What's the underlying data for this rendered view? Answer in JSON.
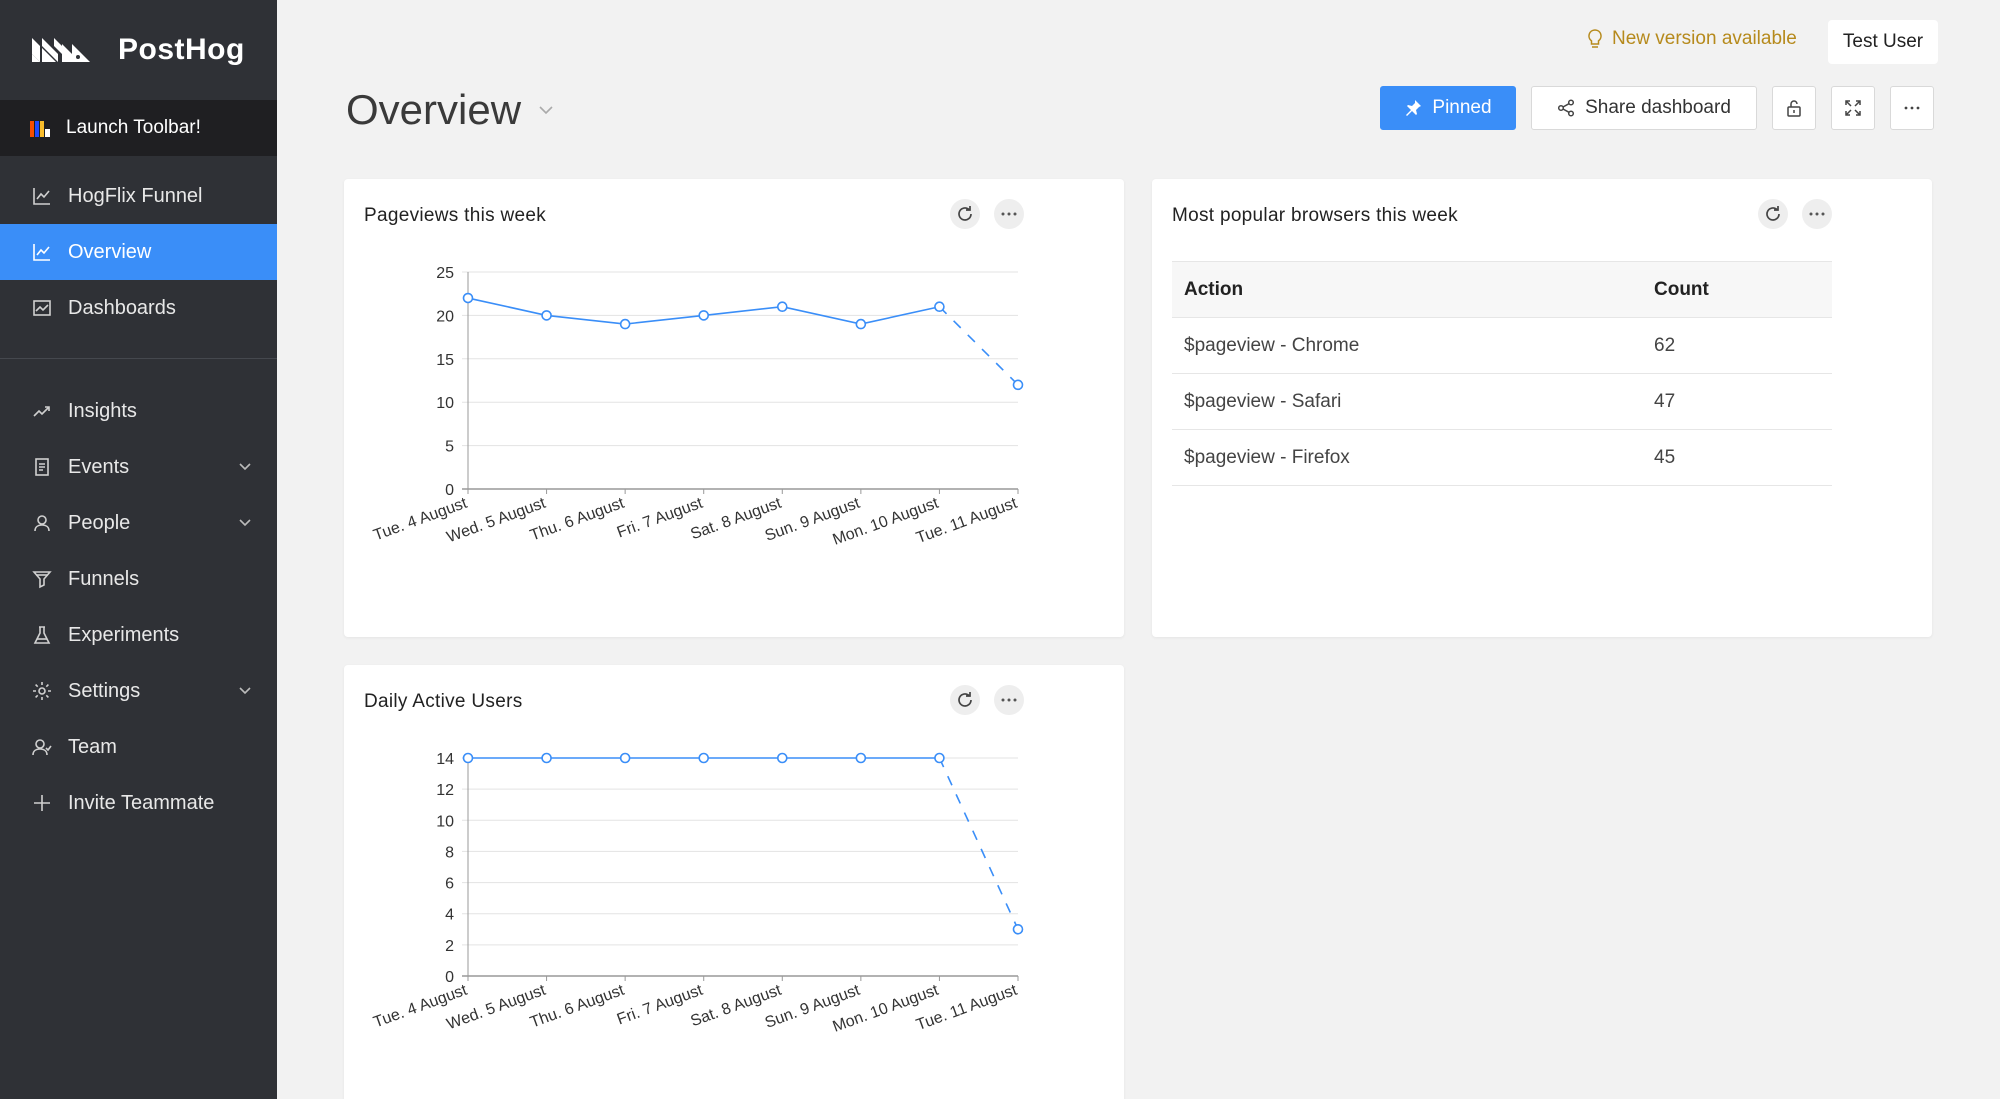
{
  "app": {
    "name": "PostHog"
  },
  "sidebar": {
    "launch_toolbar": "Launch Toolbar!",
    "items": [
      {
        "label": "HogFlix Funnel",
        "icon": "line-chart-icon"
      },
      {
        "label": "Overview",
        "icon": "line-chart-icon",
        "active": true
      },
      {
        "label": "Dashboards",
        "icon": "dashboard-icon"
      },
      {
        "label": "Insights",
        "icon": "rise-icon"
      },
      {
        "label": "Events",
        "icon": "file-icon",
        "expandable": true
      },
      {
        "label": "People",
        "icon": "user-icon",
        "expandable": true
      },
      {
        "label": "Funnels",
        "icon": "funnel-icon"
      },
      {
        "label": "Experiments",
        "icon": "flask-icon"
      },
      {
        "label": "Settings",
        "icon": "gear-icon",
        "expandable": true
      },
      {
        "label": "Team",
        "icon": "team-icon"
      },
      {
        "label": "Invite Teammate",
        "icon": "plus-icon"
      }
    ]
  },
  "header": {
    "new_version": "New version available",
    "user": "Test User",
    "title": "Overview",
    "pinned": "Pinned",
    "share": "Share dashboard"
  },
  "colors": {
    "accent": "#3a8ef8",
    "line": "#3a8ef8",
    "warning": "#b68a1c"
  },
  "cards": {
    "pageviews": {
      "title": "Pageviews this week"
    },
    "browsers": {
      "title": "Most popular browsers this week"
    },
    "dau": {
      "title": "Daily Active Users"
    }
  },
  "table": {
    "columns": [
      "Action",
      "Count"
    ],
    "rows": [
      [
        "$pageview - Chrome",
        "62"
      ],
      [
        "$pageview - Safari",
        "47"
      ],
      [
        "$pageview - Firefox",
        "45"
      ]
    ]
  },
  "chart_data": [
    {
      "type": "line",
      "title": "Pageviews this week",
      "categories": [
        "Tue. 4 August",
        "Wed. 5 August",
        "Thu. 6 August",
        "Fri. 7 August",
        "Sat. 8 August",
        "Sun. 9 August",
        "Mon. 10 August",
        "Tue. 11 August"
      ],
      "series": [
        {
          "values": [
            22,
            20,
            19,
            20,
            21,
            19,
            21,
            12
          ]
        }
      ],
      "ylim": [
        0,
        25
      ],
      "yticks": [
        0,
        5,
        10,
        15,
        20,
        25
      ],
      "grid": true,
      "dashed_last_segment": true
    },
    {
      "type": "line",
      "title": "Daily Active Users",
      "categories": [
        "Tue. 4 August",
        "Wed. 5 August",
        "Thu. 6 August",
        "Fri. 7 August",
        "Sat. 8 August",
        "Sun. 9 August",
        "Mon. 10 August",
        "Tue. 11 August"
      ],
      "series": [
        {
          "values": [
            14,
            14,
            14,
            14,
            14,
            14,
            14,
            3
          ]
        }
      ],
      "ylim": [
        0,
        14
      ],
      "yticks": [
        0,
        2,
        4,
        6,
        8,
        10,
        12,
        14
      ],
      "grid": true,
      "dashed_last_segment": true
    }
  ]
}
